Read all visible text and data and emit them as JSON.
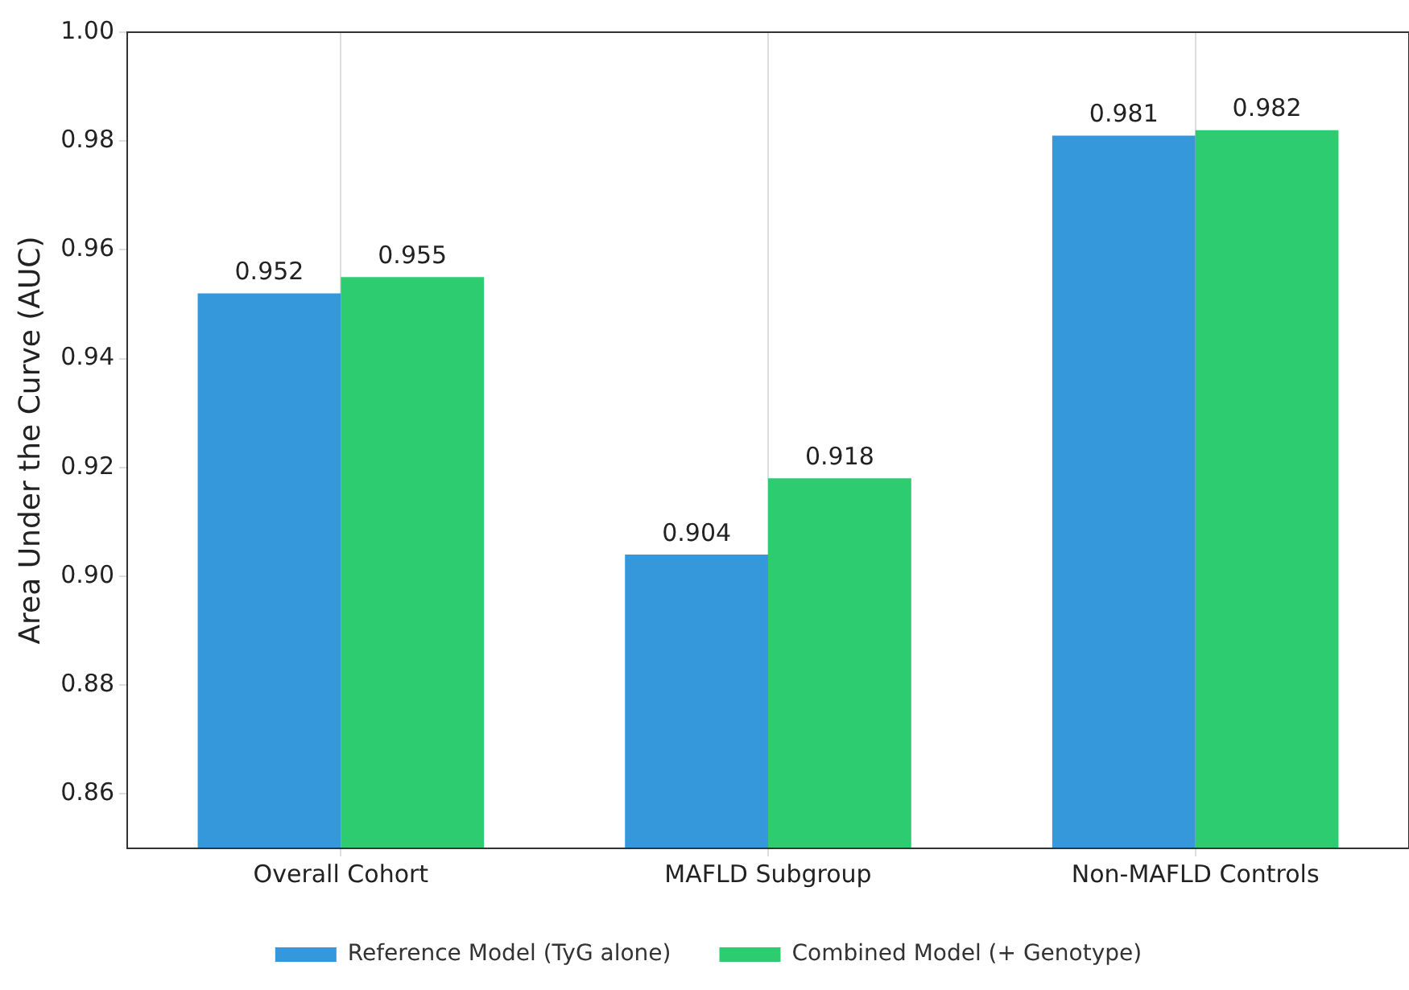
{
  "chart_data": {
    "type": "bar",
    "ylabel": "Area Under the Curve (AUC)",
    "categories": [
      "Overall Cohort",
      "MAFLD Subgroup",
      "Non-MAFLD Controls"
    ],
    "series": [
      {
        "name": "Reference Model (TyG alone)",
        "color": "#3498db",
        "values": [
          0.952,
          0.904,
          0.981
        ]
      },
      {
        "name": "Combined Model (+ Genotype)",
        "color": "#2ecc71",
        "values": [
          0.955,
          0.918,
          0.982
        ]
      }
    ],
    "ylim": [
      0.85,
      1.0
    ],
    "yticks": [
      0.86,
      0.88,
      {
        "value": 0.9,
        "label": "0.90"
      },
      0.92,
      0.94,
      0.96,
      0.98,
      {
        "value": 1.0,
        "label": "1.00"
      }
    ],
    "grid": "x",
    "legend": "bottom",
    "data_labels": true
  }
}
